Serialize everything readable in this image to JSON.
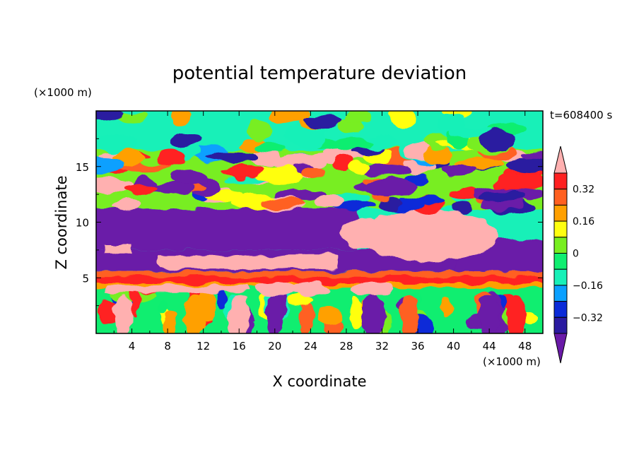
{
  "chart_data": {
    "type": "heatmap",
    "title": "potential temperature deviation",
    "xlabel": "X coordinate",
    "ylabel": "Z coordinate",
    "x_unit": "(×1000 m)",
    "y_unit": "(×1000 m)",
    "time_label": "t=608400 s",
    "xlim": [
      0,
      50
    ],
    "ylim": [
      0,
      20
    ],
    "x_ticks": [
      "4",
      "8",
      "12",
      "16",
      "20",
      "24",
      "28",
      "32",
      "36",
      "40",
      "44",
      "48"
    ],
    "y_ticks": [
      "5",
      "10",
      "15"
    ],
    "colorbar": {
      "levels": [
        -0.4,
        -0.32,
        -0.24,
        -0.16,
        -0.08,
        0,
        0.08,
        0.16,
        0.24,
        0.32,
        0.4
      ],
      "tick_labels": [
        "0.32",
        "0.16",
        "0",
        "−0.16",
        "−0.32"
      ],
      "colors": [
        "#6a1aa8",
        "#2a1aa0",
        "#0a2ad8",
        "#0aa0ff",
        "#18f0b8",
        "#10ee70",
        "#78ee20",
        "#ffff10",
        "#ffa000",
        "#ff6020",
        "#ff2020",
        "#ffb0b0"
      ],
      "extend": "both"
    },
    "bands": [
      {
        "zmin": 16.5,
        "zmax": 20,
        "value": 0.0,
        "description": "upper layer near zero"
      },
      {
        "zmin": 11.5,
        "zmax": 16.5,
        "value": -0.2,
        "description": "mixed blobs of positive and negative anomalies"
      },
      {
        "zmin": 8.0,
        "zmax": 11.5,
        "value": -0.4,
        "description": "large negative region, left and center"
      },
      {
        "zmin": 7.0,
        "zmax": 11.0,
        "xmin": 27,
        "xmax": 44,
        "value": 0.45,
        "description": "large positive region"
      },
      {
        "zmin": 5.5,
        "zmax": 7.5,
        "value": -0.4,
        "description": "negative layer"
      },
      {
        "zmin": 4.4,
        "zmax": 5.6,
        "value": 0.3,
        "description": "orange positive layer"
      },
      {
        "zmin": 0,
        "zmax": 4.4,
        "value": 0.05,
        "description": "lower layer near zero with plumes"
      }
    ]
  }
}
